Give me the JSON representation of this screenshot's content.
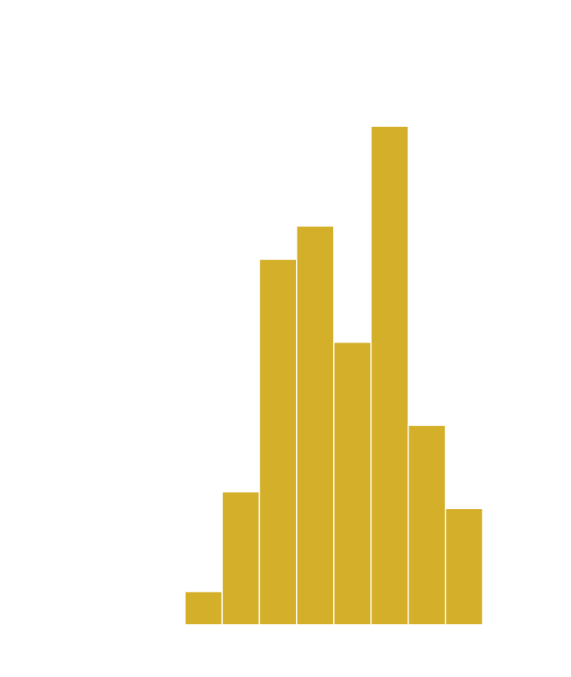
{
  "chart_data": {
    "type": "histogram",
    "bins": [
      0,
      1,
      2,
      3,
      4,
      5,
      6,
      7,
      8
    ],
    "values": [
      2,
      8,
      22,
      24,
      17,
      30,
      12,
      7
    ],
    "color": "#d4b02a",
    "edgecolor": "#ffffff",
    "xlim": [
      -3.05,
      8.84
    ],
    "ylim": [
      0,
      31.5
    ]
  }
}
